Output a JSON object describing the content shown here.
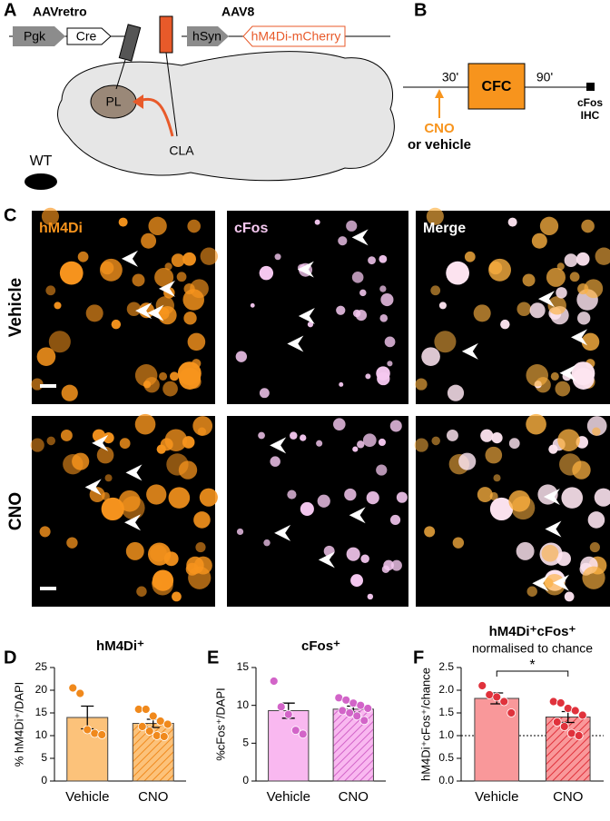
{
  "panels": {
    "A": {
      "letter": "A",
      "vector1": "AAVretro",
      "promoter1": "Pgk",
      "gene1": "Cre",
      "vector2": "AAV8",
      "promoter2": "hSyn",
      "gene2": "hM4Di-mCherry",
      "target": "PL",
      "source": "CLA",
      "animal": "WT"
    },
    "B": {
      "letter": "B",
      "pre": "30'",
      "box": "CFC",
      "post": "90'",
      "readout1": "cFos",
      "readout2": "IHC",
      "drug": "CNO",
      "alt": "or vehicle"
    },
    "C": {
      "letter": "C",
      "columns": [
        "hM4Di",
        "cFos",
        "Merge"
      ],
      "rows": [
        "Vehicle",
        "CNO"
      ]
    }
  },
  "chart_data": [
    {
      "type": "bar",
      "letter": "D",
      "title": "hM4Di⁺",
      "ylabel": "% hM4Di⁺/DAPI",
      "categories": [
        "Vehicle",
        "CNO"
      ],
      "values": [
        14,
        12.7
      ],
      "errors": [
        2.5,
        0.9
      ],
      "points": [
        [
          20.5,
          19.3,
          11.3,
          10.5,
          10.2
        ],
        [
          15.8,
          15.8,
          14.3,
          13.2,
          12.5,
          12,
          11,
          10,
          9.8
        ]
      ],
      "colors": [
        "#fcc27a",
        "#fcc27a"
      ],
      "hatch": [
        false,
        true
      ],
      "point_color": "#f0891c",
      "ylim": [
        0,
        25
      ],
      "yticks": [
        0,
        5,
        10,
        15,
        20,
        25
      ]
    },
    {
      "type": "bar",
      "letter": "E",
      "title": "cFos⁺",
      "ylabel": "%cFos⁺/DAPI",
      "categories": [
        "Vehicle",
        "CNO"
      ],
      "values": [
        9.3,
        9.5
      ],
      "errors": [
        1.0,
        0.4
      ],
      "points": [
        [
          13.2,
          9.8,
          8.8,
          6.7,
          6.2
        ],
        [
          11,
          10.7,
          10.3,
          10,
          9.6,
          9.3,
          9,
          8.6,
          8
        ]
      ],
      "colors": [
        "#f9b8f0",
        "#f9b8f0"
      ],
      "hatch": [
        false,
        true
      ],
      "point_color": "#d264c8",
      "ylim": [
        0,
        15
      ],
      "yticks": [
        0,
        5,
        10,
        15
      ]
    },
    {
      "type": "bar",
      "letter": "F",
      "title": "hM4Di⁺cFos⁺",
      "subtitle": "normalised to chance",
      "ylabel": "hM4Di⁺cFos⁺/chance",
      "categories": [
        "Vehicle",
        "CNO"
      ],
      "values": [
        1.82,
        1.41
      ],
      "errors": [
        0.12,
        0.12
      ],
      "points": [
        [
          2.1,
          1.9,
          1.85,
          1.75,
          1.5
        ],
        [
          1.75,
          1.72,
          1.6,
          1.55,
          1.45,
          1.3,
          1.2,
          1.05,
          1.0
        ]
      ],
      "colors": [
        "#f9989a",
        "#f9989a"
      ],
      "hatch": [
        false,
        true
      ],
      "point_color": "#e0323c",
      "reference_line": 1.0,
      "significance": "*",
      "ylim": [
        0,
        2.5
      ],
      "yticks": [
        {
          "value": 0,
          "label": "0.0"
        },
        {
          "value": 0.5,
          "label": "0.5"
        },
        {
          "value": 1,
          "label": "1.0"
        },
        {
          "value": 1.5,
          "label": "1.5"
        },
        {
          "value": 2,
          "label": "2.0"
        },
        {
          "value": 2.5,
          "label": "2.5"
        }
      ]
    }
  ]
}
